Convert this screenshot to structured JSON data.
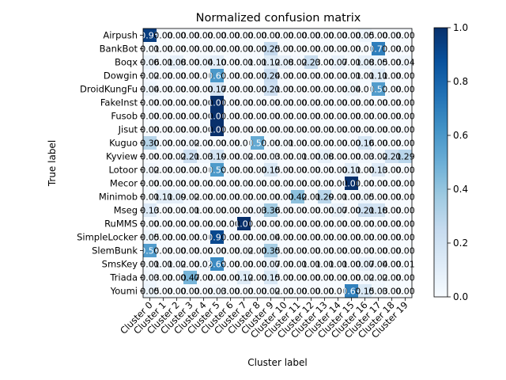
{
  "chart_data": {
    "type": "heatmap",
    "title": "Normalized confusion matrix",
    "xlabel": "Cluster label",
    "ylabel": "True label",
    "x_categories": [
      "Cluster 0",
      "Cluster 1",
      "Cluster 2",
      "Cluster 3",
      "Cluster 4",
      "Cluster 5",
      "Cluster 6",
      "Cluster 7",
      "Cluster 8",
      "Cluster 9",
      "Cluster 10",
      "Cluster 11",
      "Cluster 12",
      "Cluster 13",
      "Cluster 14",
      "Cluster 15",
      "Cluster 16",
      "Cluster 17",
      "Cluster 18",
      "Cluster 19"
    ],
    "y_categories": [
      "Airpush",
      "BankBot",
      "Boqx",
      "Dowgin",
      "DroidKungFu",
      "FakeInst",
      "Fusob",
      "Jisut",
      "Kuguo",
      "Kyview",
      "Lotoor",
      "Mecor",
      "Minimob",
      "Mseg",
      "RuMMS",
      "SimpleLocker",
      "SlemBunk",
      "SmsKey",
      "Triada",
      "Youmi"
    ],
    "values": [
      [
        0.95,
        0.0,
        0.0,
        0.0,
        0.0,
        0.0,
        0.0,
        0.0,
        0.0,
        0.0,
        0.0,
        0.0,
        0.0,
        0.0,
        0.0,
        0.0,
        0.05,
        0.0,
        0.0,
        0.0
      ],
      [
        0.01,
        0.0,
        0.0,
        0.0,
        0.0,
        0.0,
        0.0,
        0.0,
        0.0,
        0.25,
        0.0,
        0.0,
        0.0,
        0.0,
        0.0,
        0.0,
        0.0,
        0.7,
        0.0,
        0.0
      ],
      [
        0.06,
        0.01,
        0.08,
        0.0,
        0.04,
        0.1,
        0.0,
        0.01,
        0.01,
        0.12,
        0.08,
        0.02,
        0.23,
        0.0,
        0.07,
        0.01,
        0.08,
        0.05,
        0.0,
        0.04
      ],
      [
        0.02,
        0.0,
        0.0,
        0.0,
        0.0,
        0.6,
        0.0,
        0.0,
        0.0,
        0.24,
        0.0,
        0.0,
        0.0,
        0.0,
        0.0,
        0.01,
        0.01,
        0.11,
        0.0,
        0.0
      ],
      [
        0.04,
        0.0,
        0.0,
        0.0,
        0.0,
        0.17,
        0.0,
        0.0,
        0.0,
        0.21,
        0.0,
        0.0,
        0.0,
        0.0,
        0.0,
        0.04,
        0.0,
        0.58,
        0.0,
        0.0
      ],
      [
        0.0,
        0.0,
        0.0,
        0.0,
        0.0,
        1.0,
        0.0,
        0.0,
        0.0,
        0.0,
        0.0,
        0.0,
        0.0,
        0.0,
        0.0,
        0.0,
        0.0,
        0.0,
        0.0,
        0.0
      ],
      [
        0.0,
        0.0,
        0.0,
        0.0,
        0.0,
        1.0,
        0.0,
        0.0,
        0.0,
        0.0,
        0.0,
        0.0,
        0.0,
        0.0,
        0.0,
        0.0,
        0.0,
        0.0,
        0.0,
        0.0
      ],
      [
        0.0,
        0.0,
        0.0,
        0.0,
        0.0,
        1.0,
        0.0,
        0.0,
        0.0,
        0.0,
        0.0,
        0.0,
        0.0,
        0.0,
        0.0,
        0.0,
        0.0,
        0.0,
        0.0,
        0.0
      ],
      [
        0.3,
        0.0,
        0.0,
        0.02,
        0.0,
        0.0,
        0.0,
        0.0,
        0.52,
        0.0,
        0.01,
        0.0,
        0.0,
        0.0,
        0.0,
        0.0,
        0.16,
        0.0,
        0.0,
        0.0
      ],
      [
        0.0,
        0.0,
        0.02,
        0.21,
        0.03,
        0.19,
        0.0,
        0.02,
        0.0,
        0.03,
        0.0,
        0.01,
        0.0,
        0.08,
        0.0,
        0.0,
        0.03,
        0.02,
        0.21,
        0.29
      ],
      [
        0.02,
        0.0,
        0.0,
        0.0,
        0.0,
        0.59,
        0.0,
        0.0,
        0.0,
        0.15,
        0.0,
        0.0,
        0.0,
        0.0,
        0.0,
        0.11,
        0.0,
        0.13,
        0.0,
        0.0
      ],
      [
        0.0,
        0.0,
        0.0,
        0.0,
        0.0,
        0.0,
        0.0,
        0.0,
        0.0,
        0.0,
        0.0,
        0.0,
        0.0,
        0.0,
        0.0,
        1.0,
        0.0,
        0.0,
        0.0,
        0.0
      ],
      [
        0.01,
        0.11,
        0.09,
        0.02,
        0.0,
        0.0,
        0.0,
        0.0,
        0.0,
        0.0,
        0.0,
        0.42,
        0.01,
        0.29,
        0.01,
        0.0,
        0.05,
        0.0,
        0.0,
        0.0
      ],
      [
        0.13,
        0.0,
        0.0,
        0.01,
        0.0,
        0.0,
        0.0,
        0.0,
        0.03,
        0.36,
        0.0,
        0.0,
        0.0,
        0.0,
        0.07,
        0.0,
        0.21,
        0.18,
        0.0,
        0.0
      ],
      [
        0.0,
        0.0,
        0.0,
        0.0,
        0.0,
        0.0,
        0.0,
        1.0,
        0.0,
        0.0,
        0.0,
        0.0,
        0.0,
        0.0,
        0.0,
        0.0,
        0.0,
        0.0,
        0.0,
        0.0
      ],
      [
        0.05,
        0.0,
        0.0,
        0.0,
        0.0,
        0.91,
        0.0,
        0.0,
        0.0,
        0.04,
        0.0,
        0.0,
        0.0,
        0.0,
        0.0,
        0.0,
        0.0,
        0.0,
        0.0,
        0.0
      ],
      [
        0.58,
        0.0,
        0.0,
        0.0,
        0.0,
        0.0,
        0.0,
        0.02,
        0.0,
        0.35,
        0.0,
        0.0,
        0.0,
        0.0,
        0.0,
        0.0,
        0.0,
        0.0,
        0.0,
        0.0
      ],
      [
        0.01,
        0.01,
        0.02,
        0.0,
        0.02,
        0.65,
        0.0,
        0.0,
        0.0,
        0.07,
        0.0,
        0.01,
        0.01,
        0.01,
        0.01,
        0.0,
        0.07,
        0.04,
        0.0,
        0.01
      ],
      [
        0.03,
        0.0,
        0.0,
        0.47,
        0.0,
        0.0,
        0.0,
        0.12,
        0.0,
        0.15,
        0.0,
        0.0,
        0.0,
        0.0,
        0.0,
        0.0,
        0.02,
        0.02,
        0.0,
        0.0
      ],
      [
        0.05,
        0.0,
        0.0,
        0.0,
        0.0,
        0.03,
        0.0,
        0.0,
        0.0,
        0.02,
        0.0,
        0.0,
        0.0,
        0.0,
        0.0,
        0.69,
        0.15,
        0.03,
        0.0,
        0.0
      ]
    ],
    "colorbar": {
      "min": 0.0,
      "max": 1.0,
      "ticks": [
        0.0,
        0.2,
        0.4,
        0.6,
        0.8,
        1.0
      ],
      "tick_labels": [
        "0.0",
        "0.2",
        "0.4",
        "0.6",
        "0.8",
        "1.0"
      ]
    },
    "colormap": "Blues",
    "grid": false
  }
}
